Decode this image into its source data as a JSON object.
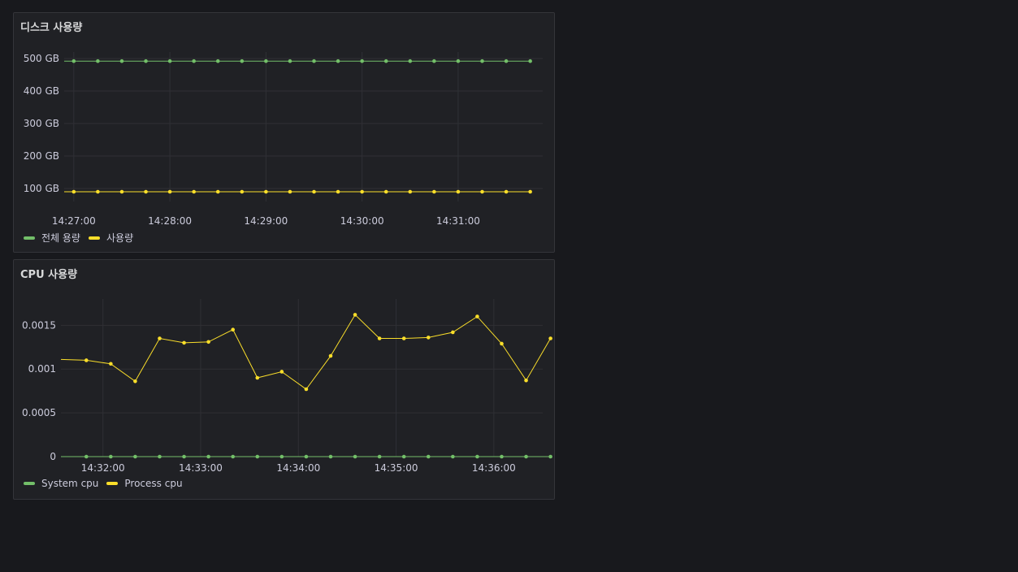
{
  "colors": {
    "green": "#73bf69",
    "yellow": "#fade2a",
    "grid": "#2f3035"
  },
  "chart_data": [
    {
      "type": "line",
      "title": "디스크 사용량",
      "xlabel": "",
      "ylabel": "",
      "ylim": [
        60,
        520
      ],
      "y_ticks": [
        100,
        200,
        300,
        400,
        500
      ],
      "y_tick_labels": [
        "100 GB",
        "200 GB",
        "300 GB",
        "400 GB",
        "500 GB"
      ],
      "x_ticks": [
        "14:27:00",
        "14:28:00",
        "14:29:00",
        "14:30:00",
        "14:31:00"
      ],
      "x_tick_minutes": [
        27,
        28,
        29,
        30,
        31
      ],
      "xlim_minutes": [
        26.9,
        31.88
      ],
      "grid": true,
      "legend_position": "bottom-left",
      "x_minutes": [
        27.0,
        27.25,
        27.5,
        27.75,
        28.0,
        28.25,
        28.5,
        28.75,
        29.0,
        29.25,
        29.5,
        29.75,
        30.0,
        30.25,
        30.5,
        30.75,
        31.0,
        31.25,
        31.5,
        31.75
      ],
      "series": [
        {
          "name": "전체 용량",
          "color": "#73bf69",
          "values": [
            492,
            492,
            492,
            492,
            492,
            492,
            492,
            492,
            492,
            492,
            492,
            492,
            492,
            492,
            492,
            492,
            492,
            492,
            492,
            492
          ]
        },
        {
          "name": "사용량",
          "color": "#fade2a",
          "values": [
            90,
            90,
            90,
            90,
            90,
            90,
            90,
            90,
            90,
            90,
            90,
            90,
            90,
            90,
            90,
            90,
            90,
            90,
            90,
            90
          ]
        }
      ]
    },
    {
      "type": "line",
      "title": "CPU 사용량",
      "xlabel": "",
      "ylabel": "",
      "ylim": [
        0,
        0.0018
      ],
      "y_ticks": [
        0,
        0.0005,
        0.001,
        0.0015
      ],
      "y_tick_labels": [
        "0",
        "0.0005",
        "0.001",
        "0.0015"
      ],
      "x_ticks": [
        "14:32:00",
        "14:33:00",
        "14:34:00",
        "14:35:00",
        "14:36:00"
      ],
      "x_tick_minutes": [
        32,
        33,
        34,
        35,
        36
      ],
      "xlim_minutes": [
        31.57,
        36.5
      ],
      "grid": true,
      "legend_position": "bottom-left",
      "x_minutes": [
        31.83,
        32.08,
        32.33,
        32.58,
        32.83,
        33.08,
        33.33,
        33.58,
        33.83,
        34.08,
        34.33,
        34.58,
        34.83,
        35.08,
        35.33,
        35.58,
        35.83,
        36.08,
        36.33,
        36.58
      ],
      "series": [
        {
          "name": "System cpu",
          "color": "#73bf69",
          "values": [
            0,
            0,
            0,
            0,
            0,
            0,
            0,
            0,
            0,
            0,
            0,
            0,
            0,
            0,
            0,
            0,
            0,
            0,
            0,
            0
          ]
        },
        {
          "name": "Process cpu",
          "color": "#fade2a",
          "start_value": 0.00111,
          "values": [
            0.0011,
            0.00106,
            0.00086,
            0.00135,
            0.0013,
            0.00131,
            0.00145,
            0.0009,
            0.00097,
            0.00077,
            0.00115,
            0.00162,
            0.00135,
            0.00135,
            0.00136,
            0.00142,
            0.0016,
            0.00129,
            0.00087,
            0.00135
          ]
        }
      ]
    }
  ]
}
